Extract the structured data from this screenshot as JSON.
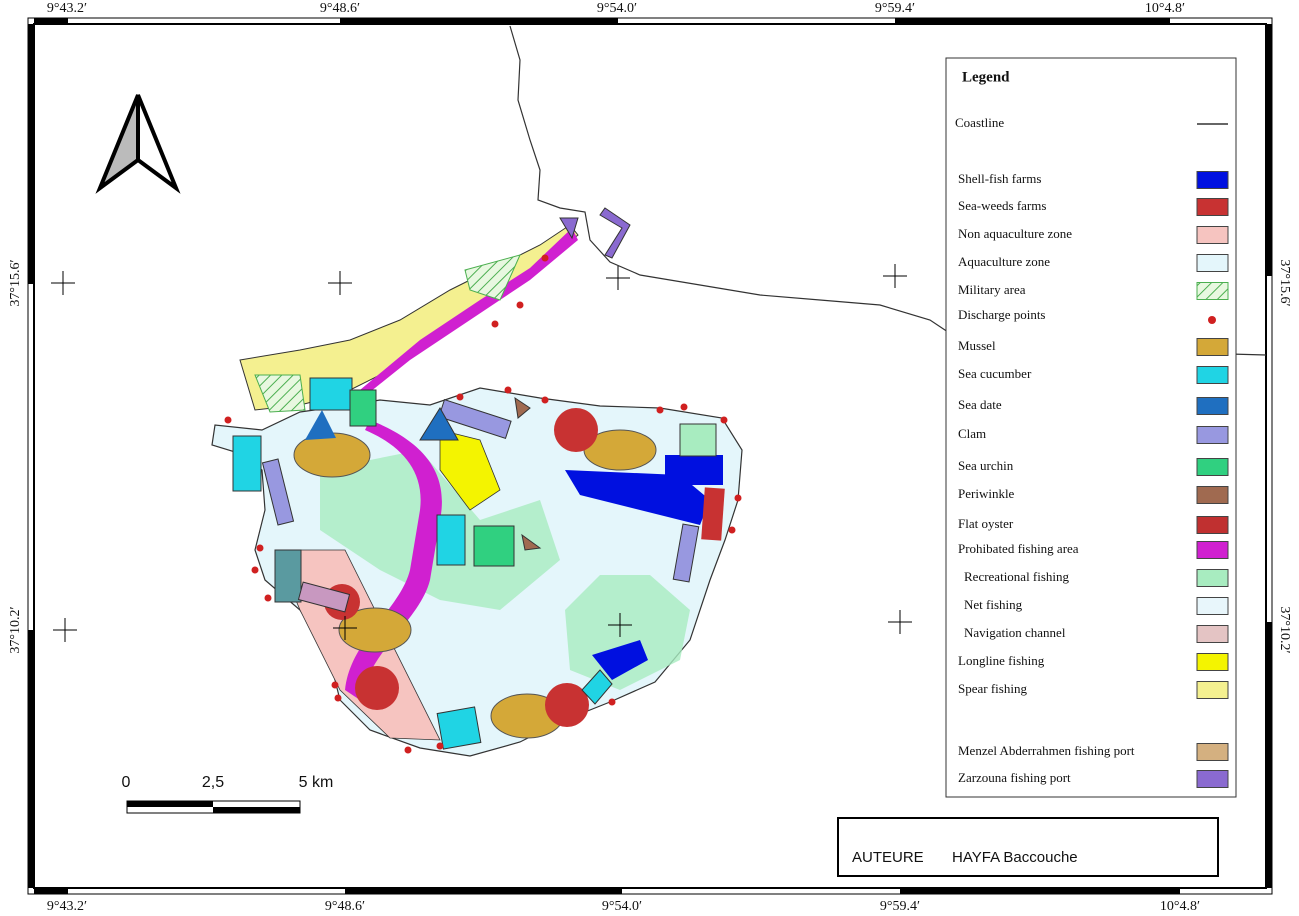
{
  "coordinates": {
    "top": [
      "9°43.2′",
      "9°48.6′",
      "9°54.0′",
      "9°59.4′",
      "10°4.8′"
    ],
    "bottom": [
      "9°43.2′",
      "9°48.6′",
      "9°54.0′",
      "9°59.4′",
      "10°4.8′"
    ],
    "left": [
      "37°15.6′",
      "37°10.2′"
    ],
    "right": [
      "37°15.6′",
      "37°10.2′"
    ]
  },
  "scale_bar": {
    "labels": [
      "0",
      "2,5",
      "5 km"
    ]
  },
  "legend": {
    "title": "Legend",
    "items": [
      {
        "label": "Coastline",
        "symbol": "line",
        "color": "#333333"
      },
      {
        "label": "Shell-fish farms",
        "symbol": "box",
        "color": "#0010e0"
      },
      {
        "label": "Sea-weeds farms",
        "symbol": "box",
        "color": "#c83232"
      },
      {
        "label": "Non aquaculture zone",
        "symbol": "box",
        "color": "#f6c4c0"
      },
      {
        "label": "Aquaculture zone",
        "symbol": "box",
        "color": "#e4f6fb"
      },
      {
        "label": "Military area",
        "symbol": "hatch",
        "color": "#4caf50"
      },
      {
        "label": "Discharge points",
        "symbol": "dot",
        "color": "#d02020"
      },
      {
        "label": "Mussel",
        "symbol": "box",
        "color": "#d4a838"
      },
      {
        "label": "Sea cucumber",
        "symbol": "box",
        "color": "#20d4e4"
      },
      {
        "label": "Sea date",
        "symbol": "box",
        "color": "#1f6fc0"
      },
      {
        "label": "Clam",
        "symbol": "box",
        "color": "#9898e0"
      },
      {
        "label": "Sea urchin",
        "symbol": "box",
        "color": "#30d080"
      },
      {
        "label": "Periwinkle",
        "symbol": "box",
        "color": "#a06a50"
      },
      {
        "label": "Flat oyster",
        "symbol": "box",
        "color": "#c03030"
      },
      {
        "label": "Prohibated fishing area",
        "symbol": "box",
        "color": "#d020d0"
      },
      {
        "label": "Recreational fishing",
        "symbol": "box",
        "color": "#a8ecc0"
      },
      {
        "label": "Net fishing",
        "symbol": "box",
        "color": "#e8f6fb"
      },
      {
        "label": "Navigation channel",
        "symbol": "box",
        "color": "#e4c4c4"
      },
      {
        "label": "Longline fishing",
        "symbol": "box",
        "color": "#f4f400"
      },
      {
        "label": "Spear fishing",
        "symbol": "box",
        "color": "#f4f090"
      },
      {
        "label": "Menzel Abderrahmen fishing port",
        "symbol": "box",
        "color": "#d4b080"
      },
      {
        "label": "Zarzouna fishing port",
        "symbol": "box",
        "color": "#8a6ad0"
      }
    ]
  },
  "author": {
    "role": "AUTEURE",
    "name": "HAYFA Baccouche"
  }
}
